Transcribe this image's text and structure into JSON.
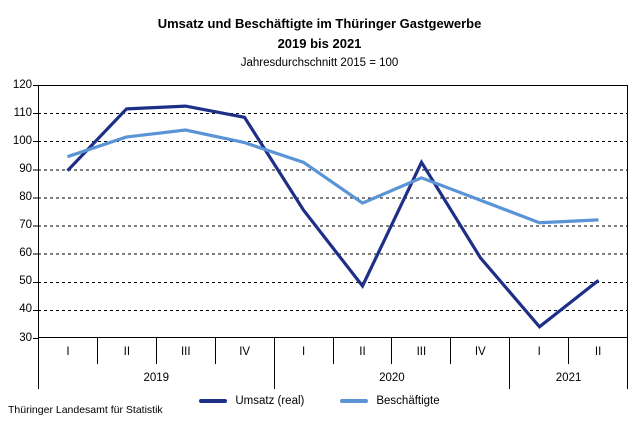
{
  "title": {
    "line1": "Umsatz und Beschäftigte im Thüringer Gastgewerbe",
    "line2": "2019 bis 2021",
    "subtitle": "Jahresdurchschnitt 2015 = 100"
  },
  "footer": {
    "source": "Thüringer Landesamt für Statistik"
  },
  "chart_data": {
    "type": "line",
    "title": "Umsatz und Beschäftigte im Thüringer Gastgewerbe 2019 bis 2021",
    "subtitle": "Jahresdurchschnitt 2015 = 100",
    "x_quarters": [
      "I",
      "II",
      "III",
      "IV",
      "I",
      "II",
      "III",
      "IV",
      "I",
      "II"
    ],
    "year_groups": [
      {
        "label": "2019",
        "span": 4
      },
      {
        "label": "2020",
        "span": 4
      },
      {
        "label": "2021",
        "span": 2
      }
    ],
    "series": [
      {
        "name": "Umsatz (real)",
        "color": "#1E2F87",
        "values": [
          89.5,
          111.5,
          112.5,
          108.5,
          75.5,
          48.5,
          92.5,
          58.5,
          34,
          50.5
        ]
      },
      {
        "name": "Beschäftigte",
        "color": "#5B94D6",
        "values": [
          94.5,
          101.5,
          104,
          99.5,
          92.5,
          78,
          87,
          79,
          71,
          72
        ]
      }
    ],
    "ylim": [
      30,
      120
    ],
    "ytick_step": 10,
    "grid": "horizontal-dashed",
    "grid_color": "#000000",
    "border_color": "#000000",
    "legend_position": "bottom"
  }
}
